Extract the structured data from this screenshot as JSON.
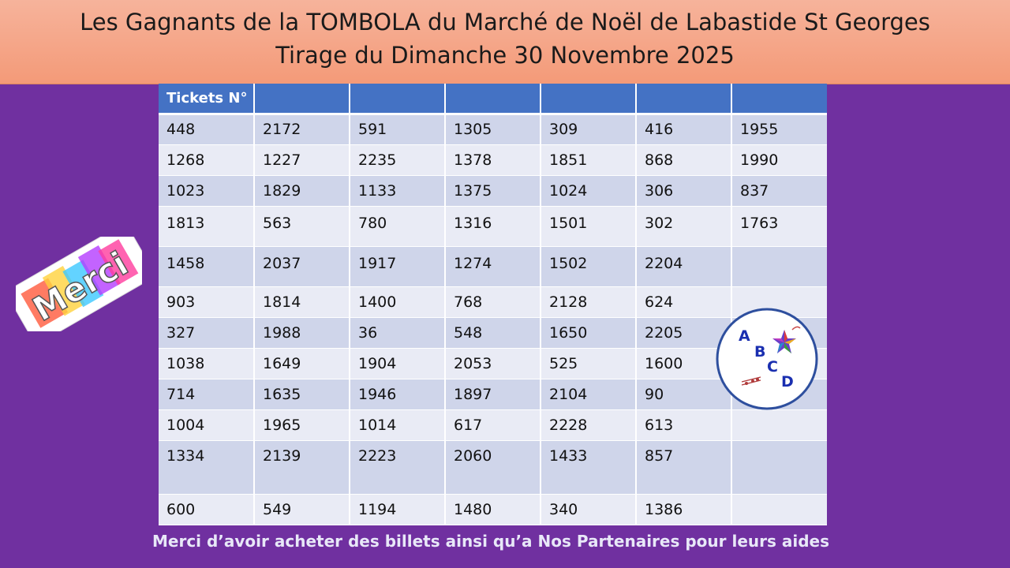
{
  "title_line1": "Les Gagnants de la TOMBOLA du Marché de Noël de Labastide St Georges",
  "title_line2": "Tirage du Dimanche 30 Novembre 2025",
  "table": {
    "header": [
      "Tickets N°",
      "",
      "",
      "",
      "",
      "",
      ""
    ],
    "rows": [
      [
        "448",
        "2172",
        "591",
        "1305",
        "309",
        "416",
        "1955"
      ],
      [
        "1268",
        "1227",
        "2235",
        "1378",
        "1851",
        "868",
        "1990"
      ],
      [
        "1023",
        "1829",
        "1133",
        "1375",
        "1024",
        "306",
        "837"
      ],
      [
        "1813",
        "563",
        "780",
        "1316",
        "1501",
        "302",
        "1763"
      ],
      [
        "1458",
        "2037",
        "1917",
        "1274",
        "1502",
        "2204",
        ""
      ],
      [
        "903",
        "1814",
        "1400",
        "768",
        "2128",
        "624",
        ""
      ],
      [
        "327",
        "1988",
        "36",
        "548",
        "1650",
        "2205",
        ""
      ],
      [
        "1038",
        "1649",
        "1904",
        "2053",
        "525",
        "1600",
        ""
      ],
      [
        "714",
        "1635",
        "1946",
        "1897",
        "2104",
        "90",
        ""
      ],
      [
        "1004",
        "1965",
        "1014",
        "617",
        "2228",
        "613",
        ""
      ],
      [
        "1334",
        "2139",
        "2223",
        "2060",
        "1433",
        "857",
        ""
      ],
      [
        "600",
        "549",
        "1194",
        "1480",
        "340",
        "1386",
        ""
      ]
    ]
  },
  "merci_text": "Merci",
  "logo": {
    "letters": [
      "A",
      "B",
      "C",
      "D"
    ]
  },
  "footer": "Merci d’avoir acheter des billets ainsi qu’a Nos Partenaires pour leurs aides",
  "colors": {
    "background": "#7030a0",
    "banner": "#f4a384",
    "header": "#4472c4",
    "row_dark": "#cfd5ea",
    "row_light": "#e9ebf5"
  }
}
